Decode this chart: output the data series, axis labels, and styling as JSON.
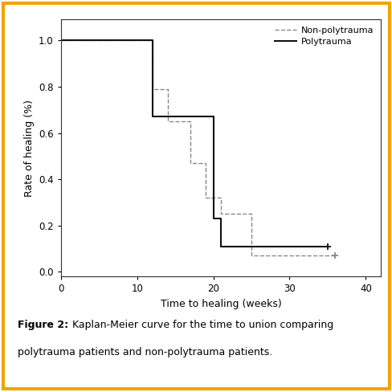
{
  "xlabel": "Time to healing (weeks)",
  "ylabel": "Rate of healing (%)",
  "xlim": [
    0,
    42
  ],
  "ylim": [
    -0.02,
    1.09
  ],
  "xticks": [
    0,
    10,
    20,
    30,
    40
  ],
  "yticks": [
    0.0,
    0.2,
    0.4,
    0.6,
    0.8,
    1.0
  ],
  "non_poly": {
    "x": [
      0,
      12,
      12,
      14,
      14,
      17,
      17,
      19,
      19,
      21,
      21,
      25,
      25,
      36
    ],
    "y": [
      1.0,
      1.0,
      0.79,
      0.79,
      0.65,
      0.65,
      0.47,
      0.47,
      0.32,
      0.32,
      0.25,
      0.25,
      0.07,
      0.07
    ],
    "censor_x": [
      36
    ],
    "censor_y": [
      0.07
    ],
    "color": "#888888",
    "label": "Non-polytrauma"
  },
  "poly": {
    "x": [
      0,
      12,
      12,
      20,
      20,
      21,
      21,
      24,
      24,
      35
    ],
    "y": [
      1.0,
      1.0,
      0.67,
      0.67,
      0.23,
      0.23,
      0.11,
      0.11,
      0.11,
      0.11
    ],
    "censor_x": [
      35
    ],
    "censor_y": [
      0.11
    ],
    "color": "#111111",
    "label": "Polytrauma"
  },
  "caption_bold": "Figure 2:",
  "caption_normal": " Kaplan-Meier curve for the time to union comparing\npolytrauma patients and non-polytrauma patients.",
  "figure_bg": "#ffffff",
  "border_color": "#f0a500"
}
